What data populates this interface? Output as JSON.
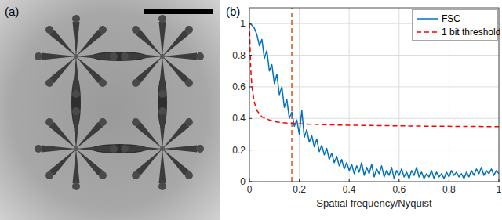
{
  "panel_labels": [
    "(a)",
    "(b)"
  ],
  "chart_data": {
    "type": "line",
    "x_label": "Spatial frequency/Nyquist",
    "xlim": [
      0,
      1
    ],
    "xticks": [
      0,
      0.2,
      0.4,
      0.6,
      0.8,
      1
    ],
    "ylim": [
      0,
      1.1
    ],
    "yticks": [
      0,
      0.2,
      0.4,
      0.6,
      0.8,
      1
    ],
    "grid": true,
    "legend": "top-right",
    "vline": {
      "x": 0.17,
      "color": "#d95319",
      "line_style": "dashed"
    },
    "series": [
      {
        "name": "FSC",
        "color": "#0072bd",
        "line_style": "solid",
        "x": [
          0,
          0.01,
          0.02,
          0.03,
          0.04,
          0.05,
          0.06,
          0.07,
          0.08,
          0.09,
          0.1,
          0.11,
          0.12,
          0.13,
          0.14,
          0.15,
          0.16,
          0.17,
          0.18,
          0.19,
          0.2,
          0.21,
          0.22,
          0.23,
          0.24,
          0.25,
          0.26,
          0.27,
          0.28,
          0.29,
          0.3,
          0.31,
          0.32,
          0.33,
          0.34,
          0.35,
          0.36,
          0.37,
          0.38,
          0.39,
          0.4,
          0.41,
          0.42,
          0.43,
          0.44,
          0.45,
          0.46,
          0.47,
          0.48,
          0.49,
          0.5,
          0.51,
          0.52,
          0.53,
          0.54,
          0.55,
          0.56,
          0.57,
          0.58,
          0.59,
          0.6,
          0.61,
          0.62,
          0.63,
          0.64,
          0.65,
          0.66,
          0.67,
          0.68,
          0.69,
          0.7,
          0.71,
          0.72,
          0.73,
          0.74,
          0.75,
          0.76,
          0.77,
          0.78,
          0.79,
          0.8,
          0.81,
          0.82,
          0.83,
          0.84,
          0.85,
          0.86,
          0.87,
          0.88,
          0.89,
          0.9,
          0.91,
          0.92,
          0.93,
          0.94,
          0.95,
          0.96,
          0.97,
          0.98,
          0.99,
          1
        ],
        "values": [
          1,
          0.99,
          0.97,
          0.93,
          0.86,
          0.9,
          0.78,
          0.83,
          0.7,
          0.74,
          0.62,
          0.68,
          0.55,
          0.6,
          0.47,
          0.52,
          0.4,
          0.44,
          0.35,
          0.39,
          0.3,
          0.45,
          0.28,
          0.33,
          0.25,
          0.29,
          0.22,
          0.27,
          0.19,
          0.23,
          0.17,
          0.21,
          0.14,
          0.18,
          0.12,
          0.16,
          0.1,
          0.14,
          0.08,
          0.12,
          0.07,
          0.11,
          0.05,
          0.1,
          0.06,
          0.12,
          0.04,
          0.09,
          0.05,
          0.11,
          0.03,
          0.08,
          0.05,
          0.1,
          0.03,
          0.07,
          0.04,
          0.09,
          0.02,
          0.07,
          0.04,
          0.08,
          0.03,
          0.06,
          0.02,
          0.07,
          0.04,
          0.09,
          0.03,
          0.06,
          0.02,
          0.05,
          0.03,
          0.07,
          0.02,
          0.06,
          0.03,
          0.05,
          0.02,
          0.06,
          0.03,
          0.07,
          0.04,
          0.06,
          0.03,
          0.05,
          0.02,
          0.06,
          0.03,
          0.07,
          0.04,
          0.08,
          0.05,
          0.09,
          0.04,
          0.07,
          0.05,
          0.08,
          0.04,
          0.07,
          0.05
        ]
      },
      {
        "name": "1 bit threshold",
        "color": "#ff0000",
        "line_style": "dashed",
        "x": [
          0,
          0.005,
          0.01,
          0.02,
          0.03,
          0.05,
          0.08,
          0.1,
          0.15,
          0.2,
          0.3,
          0.4,
          0.5,
          0.6,
          0.7,
          0.8,
          0.9,
          1
        ],
        "values": [
          1,
          0.72,
          0.6,
          0.5,
          0.45,
          0.41,
          0.39,
          0.38,
          0.37,
          0.366,
          0.36,
          0.357,
          0.355,
          0.353,
          0.351,
          0.35,
          0.349,
          0.348
        ]
      }
    ]
  }
}
